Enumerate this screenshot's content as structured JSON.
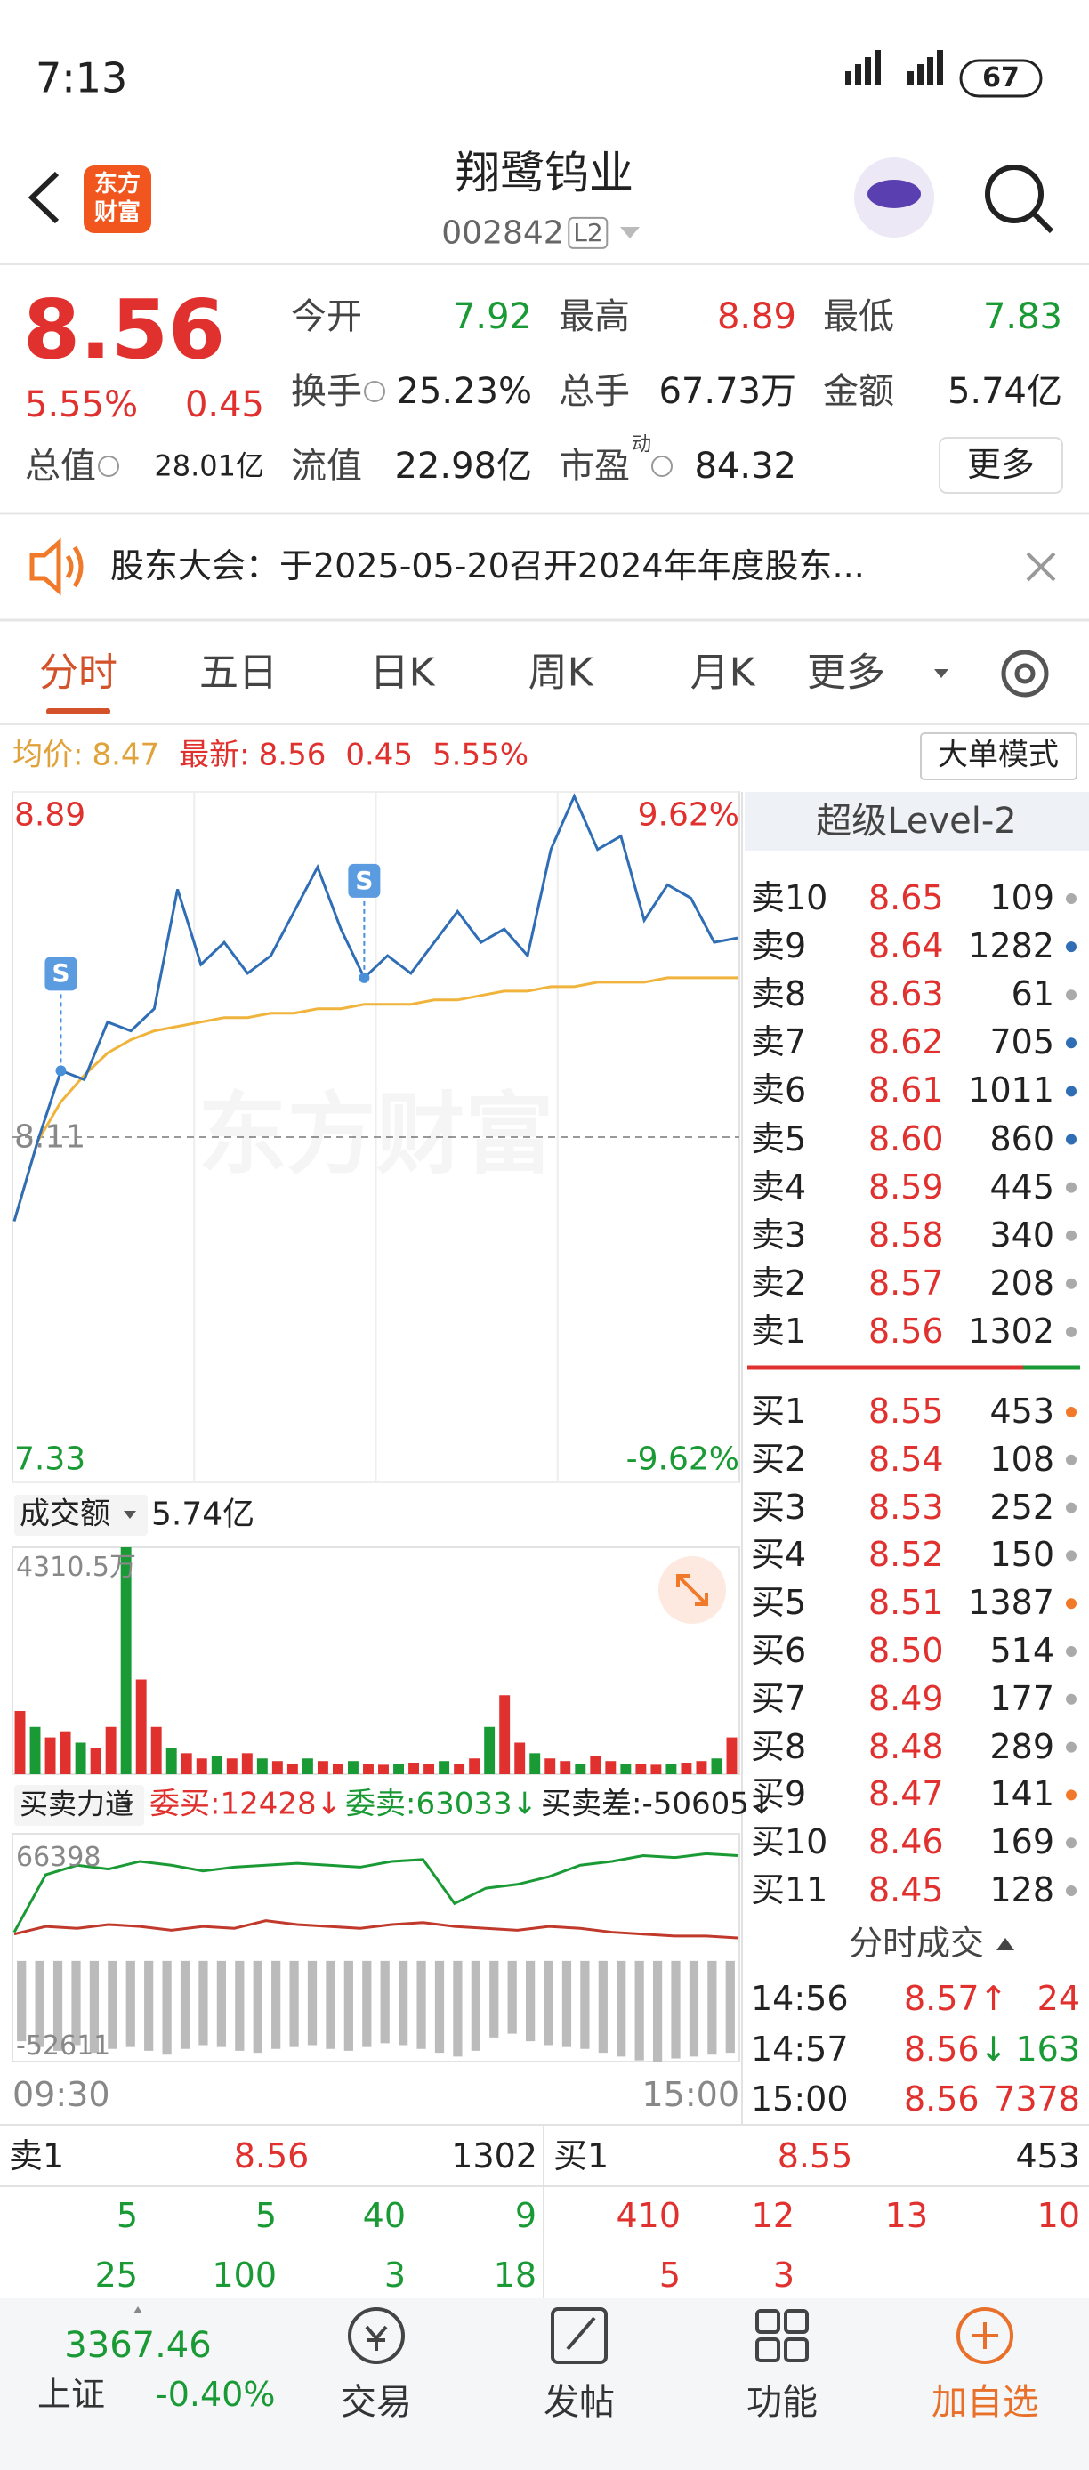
{
  "status_bar": {
    "time": "7:13",
    "battery": "67"
  },
  "header": {
    "logo": [
      "东方",
      "财富"
    ],
    "title": "翔鹭钨业",
    "code": "002842",
    "level": "L2"
  },
  "quote": {
    "price": "8.56",
    "change_pct": "5.55%",
    "change": "0.45",
    "stats": [
      {
        "label": "今开",
        "value": "7.92",
        "color": "#1a9a35"
      },
      {
        "label": "最高",
        "value": "8.89",
        "color": "#e0312f"
      },
      {
        "label": "最低",
        "value": "7.83",
        "color": "#1a9a35"
      },
      {
        "label": "换手",
        "value": "25.23%",
        "color": "#222222"
      },
      {
        "label": "总手",
        "value": "67.73万",
        "color": "#222222"
      },
      {
        "label": "金额",
        "value": "5.74亿",
        "color": "#222222"
      },
      {
        "label": "总值",
        "value": "28.01亿",
        "color": "#222222"
      },
      {
        "label": "流值",
        "value": "22.98亿",
        "color": "#222222"
      },
      {
        "label": "市盈",
        "sup": "动",
        "value": "84.32",
        "color": "#222222"
      }
    ],
    "more": "更多"
  },
  "notice": {
    "text": "股东大会：于2025-05-20召开2024年年度股东..."
  },
  "tabs": {
    "items": [
      "分时",
      "五日",
      "日K",
      "周K",
      "月K",
      "更多"
    ],
    "active": 0
  },
  "intraday": {
    "legend": {
      "avg_label": "均价:",
      "avg": "8.47",
      "latest_label": "最新:",
      "latest": "8.56",
      "change": "0.45",
      "change_pct": "5.55%"
    },
    "mode_button": "大单模式",
    "watermark": "东方财富",
    "ylim": [
      7.33,
      8.89
    ],
    "yticks": [
      8.89,
      8.11,
      7.33
    ],
    "pct_top": "9.62%",
    "pct_bottom": "-9.62%",
    "price": [
      7.92,
      8.1,
      8.26,
      8.24,
      8.37,
      8.35,
      8.4,
      8.67,
      8.5,
      8.55,
      8.48,
      8.52,
      8.62,
      8.72,
      8.58,
      8.47,
      8.52,
      8.48,
      8.55,
      8.62,
      8.55,
      8.58,
      8.52,
      8.76,
      8.88,
      8.76,
      8.79,
      8.6,
      8.68,
      8.65,
      8.55,
      8.56
    ],
    "price_color": "#2f6db5",
    "avg_price": [
      7.92,
      8.1,
      8.19,
      8.25,
      8.3,
      8.33,
      8.35,
      8.36,
      8.37,
      8.38,
      8.38,
      8.39,
      8.39,
      8.4,
      8.4,
      8.41,
      8.41,
      8.41,
      8.42,
      8.42,
      8.43,
      8.44,
      8.44,
      8.45,
      8.45,
      8.46,
      8.46,
      8.46,
      8.47,
      8.47,
      8.47,
      8.47
    ],
    "avg_color": "#f0b43c",
    "markers": [
      {
        "label": "S",
        "index": 2
      },
      {
        "label": "S",
        "index": 15
      }
    ],
    "x_start": "09:30",
    "x_end": "15:00"
  },
  "volume": {
    "label": "成交额",
    "total": "5.74亿",
    "max_label": "4310.5万",
    "ylim": [
      0,
      4310.5
    ],
    "values": [
      1200,
      900,
      700,
      800,
      600,
      500,
      900,
      4310.5,
      1800,
      900,
      500,
      400,
      300,
      350,
      300,
      400,
      300,
      250,
      200,
      300,
      250,
      200,
      250,
      200,
      180,
      200,
      220,
      200,
      250,
      200,
      300,
      900,
      1500,
      600,
      400,
      300,
      250,
      200,
      350,
      250,
      200,
      200,
      180,
      200,
      220,
      250,
      300,
      700
    ]
  },
  "force": {
    "label": "买卖力道",
    "buy": "委买:12428↓",
    "sell": "委卖:63033↓",
    "diff": "买卖差:-50605↓",
    "top_label": "66398",
    "bottom_label": "-52611",
    "ylim": [
      -52611,
      66398
    ],
    "green": [
      15000,
      45000,
      50000,
      48000,
      52000,
      50000,
      47000,
      49000,
      50000,
      51000,
      50000,
      49000,
      52000,
      53000,
      30000,
      38000,
      40000,
      44000,
      50000,
      52000,
      55000,
      54000,
      56000,
      55000
    ],
    "red": [
      14000,
      18000,
      17000,
      19000,
      18000,
      16000,
      18000,
      17000,
      21000,
      19000,
      18000,
      17000,
      19000,
      20000,
      18000,
      17000,
      16000,
      18000,
      17000,
      15000,
      14000,
      13000,
      13000,
      12000
    ],
    "bars": [
      -42000,
      -45000,
      -47000,
      -44000,
      -48000,
      -46000,
      -45000,
      -47000,
      -49000,
      -46000,
      -44000,
      -45000,
      -47000,
      -48000,
      -46000,
      -45000,
      -44000,
      -46000,
      -47000,
      -45000,
      -43000,
      -44000,
      -46000,
      -48000,
      -50000,
      -47000,
      -40000,
      -38000,
      -42000,
      -44000,
      -45000,
      -46000,
      -48000,
      -50000,
      -52000,
      -52611,
      -51000,
      -50000,
      -49000,
      -48000
    ]
  },
  "order_book": {
    "title": "超级Level-2",
    "sell": [
      {
        "label": "卖10",
        "price": "8.65",
        "volume": "109",
        "dot": "#aaaaaa"
      },
      {
        "label": "卖9",
        "price": "8.64",
        "volume": "1282",
        "dot": "#2f6db5"
      },
      {
        "label": "卖8",
        "price": "8.63",
        "volume": "61",
        "dot": "#aaaaaa"
      },
      {
        "label": "卖7",
        "price": "8.62",
        "volume": "705",
        "dot": "#2f6db5"
      },
      {
        "label": "卖6",
        "price": "8.61",
        "volume": "1011",
        "dot": "#2f6db5"
      },
      {
        "label": "卖5",
        "price": "8.60",
        "volume": "860",
        "dot": "#2f6db5"
      },
      {
        "label": "卖4",
        "price": "8.59",
        "volume": "445",
        "dot": "#aaaaaa"
      },
      {
        "label": "卖3",
        "price": "8.58",
        "volume": "340",
        "dot": "#aaaaaa"
      },
      {
        "label": "卖2",
        "price": "8.57",
        "volume": "208",
        "dot": "#aaaaaa"
      },
      {
        "label": "卖1",
        "price": "8.56",
        "volume": "1302",
        "dot": "#aaaaaa"
      }
    ],
    "buy": [
      {
        "label": "买1",
        "price": "8.55",
        "volume": "453",
        "dot": "#f07a2a"
      },
      {
        "label": "买2",
        "price": "8.54",
        "volume": "108",
        "dot": "#aaaaaa"
      },
      {
        "label": "买3",
        "price": "8.53",
        "volume": "252",
        "dot": "#aaaaaa"
      },
      {
        "label": "买4",
        "price": "8.52",
        "volume": "150",
        "dot": "#aaaaaa"
      },
      {
        "label": "买5",
        "price": "8.51",
        "volume": "1387",
        "dot": "#f07a2a"
      },
      {
        "label": "买6",
        "price": "8.50",
        "volume": "514",
        "dot": "#aaaaaa"
      },
      {
        "label": "买7",
        "price": "8.49",
        "volume": "177",
        "dot": "#aaaaaa"
      },
      {
        "label": "买8",
        "price": "8.48",
        "volume": "289",
        "dot": "#aaaaaa"
      },
      {
        "label": "买9",
        "price": "8.47",
        "volume": "141",
        "dot": "#f07a2a"
      },
      {
        "label": "买10",
        "price": "8.46",
        "volume": "169",
        "dot": "#aaaaaa"
      },
      {
        "label": "买11",
        "price": "8.45",
        "volume": "128",
        "dot": "#aaaaaa"
      }
    ]
  },
  "trades": {
    "title": "分时成交",
    "rows": [
      {
        "time": "14:56",
        "price": "8.57",
        "arrow": "↑",
        "arrow_color": "#e0312f",
        "volume": "24",
        "volume_color": "#e0312f"
      },
      {
        "time": "14:57",
        "price": "8.56",
        "arrow": "↓",
        "arrow_color": "#1a9a35",
        "volume": "163",
        "volume_color": "#1a9a35"
      },
      {
        "time": "15:00",
        "price": "8.56",
        "volume": "7378",
        "volume_color": "#e0312f"
      }
    ]
  },
  "bottom_book": {
    "sell": {
      "label": "卖1",
      "price": "8.56",
      "volume": "1302"
    },
    "buy": {
      "label": "买1",
      "price": "8.55",
      "volume": "453"
    },
    "sell_queue": [
      "5",
      "5",
      "40",
      "9",
      "25",
      "100",
      "3",
      "18"
    ],
    "buy_queue": [
      "410",
      "12",
      "13",
      "10",
      "5",
      "3"
    ]
  },
  "nav": {
    "index": {
      "value": "3367.46",
      "name": "上证",
      "change": "-0.40%"
    },
    "items": [
      "交易",
      "发帖",
      "功能",
      "加自选"
    ]
  }
}
